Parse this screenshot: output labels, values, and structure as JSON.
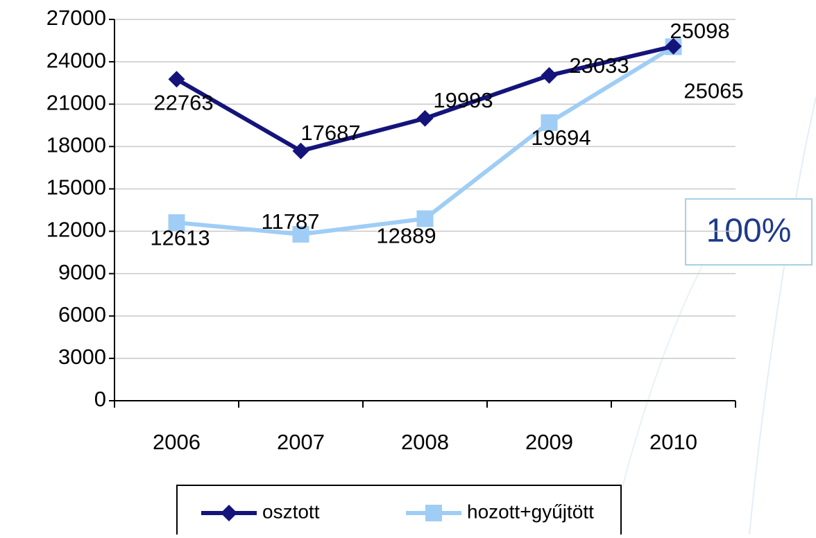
{
  "chart_data": {
    "type": "line",
    "categories": [
      "2006",
      "2007",
      "2008",
      "2009",
      "2010"
    ],
    "series": [
      {
        "name": "osztott",
        "color": "#14147a",
        "marker": "diamond",
        "values": [
          22763,
          17687,
          19993,
          23033,
          25098
        ]
      },
      {
        "name": "hozott+gyűjtött",
        "color": "#9fcdf5",
        "marker": "square",
        "values": [
          12613,
          11787,
          12889,
          19694,
          25065
        ]
      }
    ],
    "ylim": [
      0,
      27000
    ],
    "yticks": [
      0,
      3000,
      6000,
      9000,
      12000,
      15000,
      18000,
      21000,
      24000,
      27000
    ],
    "grid": true,
    "legend": "bottom",
    "annotation": "100%"
  }
}
